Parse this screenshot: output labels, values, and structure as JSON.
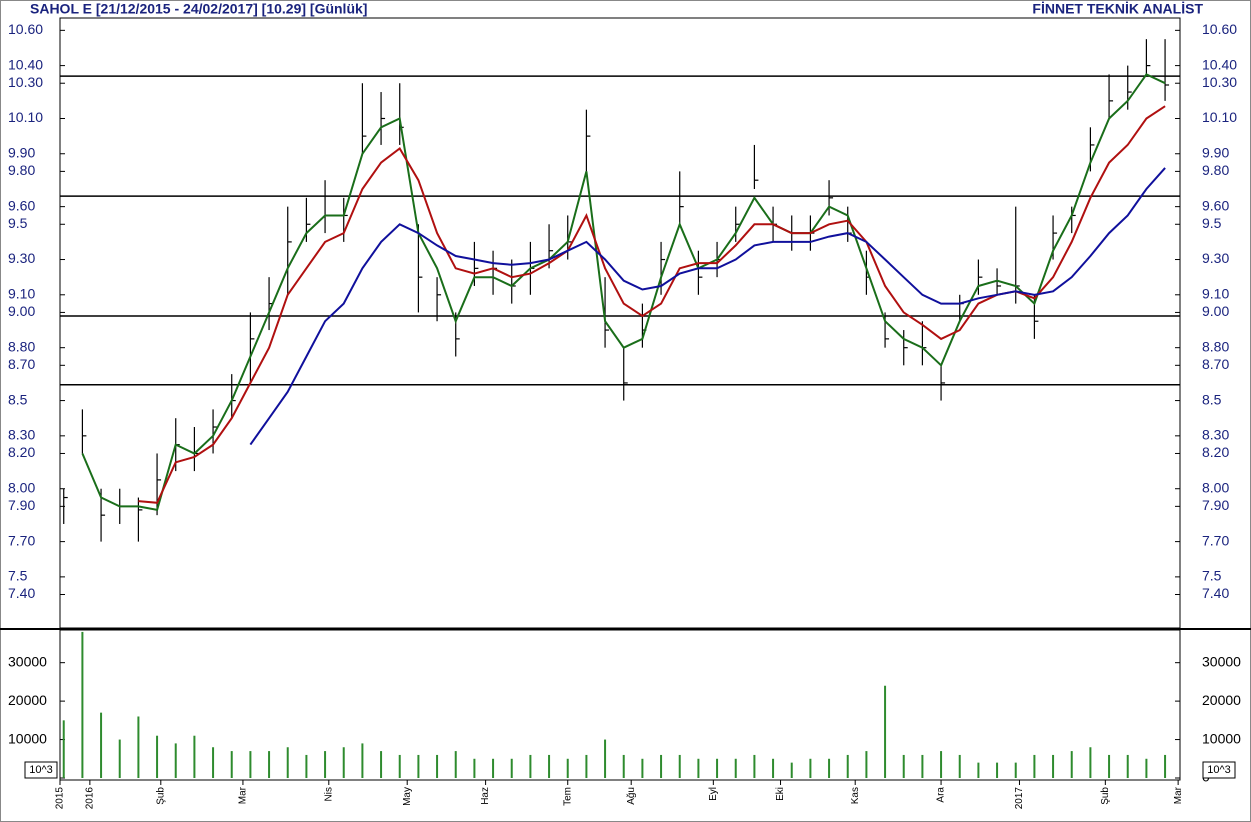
{
  "chart_data": [
    {
      "type": "ohlc",
      "title": "SAHOL E  [21/12/2015 - 24/02/2017]  [10.29]  [Günlük]",
      "source": "FİNNET TEKNİK ANALİST",
      "color": "#000000",
      "x": [
        1,
        6,
        11,
        16,
        21,
        26,
        31,
        36,
        41,
        46,
        51,
        56,
        61,
        66,
        71,
        76,
        81,
        86,
        91,
        96,
        101,
        106,
        111,
        116,
        121,
        126,
        131,
        136,
        141,
        146,
        151,
        156,
        161,
        166,
        171,
        176,
        181,
        186,
        191,
        196,
        201,
        206,
        211,
        216,
        221,
        226,
        231,
        236,
        241,
        246,
        251,
        256,
        261,
        266,
        271,
        276,
        281,
        286,
        291,
        296
      ],
      "high": [
        8.0,
        8.45,
        8.0,
        8.0,
        7.95,
        8.2,
        8.4,
        8.35,
        8.45,
        8.65,
        9.0,
        9.2,
        9.6,
        9.65,
        9.75,
        9.65,
        10.3,
        10.25,
        10.3,
        9.5,
        9.2,
        9.0,
        9.4,
        9.35,
        9.3,
        9.4,
        9.5,
        9.55,
        10.15,
        9.2,
        8.8,
        9.05,
        9.4,
        9.8,
        9.35,
        9.4,
        9.6,
        9.95,
        9.6,
        9.55,
        9.55,
        9.75,
        9.6,
        9.35,
        9.0,
        8.9,
        8.95,
        8.7,
        9.1,
        9.3,
        9.25,
        9.6,
        9.1,
        9.55,
        9.6,
        10.05,
        10.35,
        10.4,
        10.55,
        10.55
      ],
      "low": [
        7.8,
        8.2,
        7.7,
        7.8,
        7.7,
        7.85,
        8.1,
        8.1,
        8.2,
        8.4,
        8.6,
        8.9,
        9.1,
        9.4,
        9.45,
        9.4,
        9.9,
        9.95,
        9.95,
        9.0,
        8.95,
        8.75,
        9.15,
        9.1,
        9.05,
        9.1,
        9.25,
        9.3,
        9.8,
        8.8,
        8.5,
        8.8,
        9.1,
        9.5,
        9.1,
        9.2,
        9.4,
        9.7,
        9.4,
        9.35,
        9.35,
        9.55,
        9.4,
        9.1,
        8.8,
        8.7,
        8.7,
        8.5,
        8.95,
        9.1,
        9.1,
        9.05,
        8.85,
        9.3,
        9.45,
        9.8,
        10.1,
        10.15,
        10.35,
        10.2
      ],
      "close": [
        7.95,
        8.3,
        7.85,
        7.9,
        7.88,
        8.05,
        8.25,
        8.2,
        8.35,
        8.5,
        8.85,
        9.05,
        9.4,
        9.5,
        9.55,
        9.55,
        10.0,
        10.1,
        10.05,
        9.2,
        9.1,
        8.85,
        9.25,
        9.25,
        9.15,
        9.25,
        9.35,
        9.4,
        10.0,
        8.9,
        8.6,
        8.9,
        9.3,
        9.6,
        9.2,
        9.3,
        9.5,
        9.75,
        9.5,
        9.45,
        9.45,
        9.65,
        9.45,
        9.2,
        8.85,
        8.8,
        8.8,
        8.6,
        9.05,
        9.2,
        9.15,
        9.15,
        8.95,
        9.45,
        9.55,
        9.95,
        10.2,
        10.25,
        10.4,
        10.29
      ],
      "series": [
        {
          "color": "#1a6e1a",
          "values": [
            null,
            8.2,
            7.95,
            7.9,
            7.9,
            7.88,
            8.25,
            8.2,
            8.3,
            8.5,
            8.75,
            9.0,
            9.25,
            9.45,
            9.55,
            9.55,
            9.9,
            10.05,
            10.1,
            9.45,
            9.25,
            8.95,
            9.2,
            9.2,
            9.15,
            9.25,
            9.3,
            9.4,
            9.8,
            8.95,
            8.8,
            8.85,
            9.2,
            9.5,
            9.25,
            9.3,
            9.45,
            9.65,
            9.5,
            9.45,
            9.45,
            9.6,
            9.55,
            9.25,
            8.95,
            8.85,
            8.8,
            8.7,
            8.95,
            9.15,
            9.18,
            9.15,
            9.05,
            9.35,
            9.55,
            9.85,
            10.1,
            10.2,
            10.35,
            10.3
          ]
        },
        {
          "color": "#b01010",
          "values": [
            null,
            null,
            null,
            null,
            7.93,
            7.92,
            8.15,
            8.18,
            8.25,
            8.4,
            8.6,
            8.8,
            9.1,
            9.25,
            9.4,
            9.45,
            9.7,
            9.85,
            9.93,
            9.75,
            9.45,
            9.25,
            9.22,
            9.25,
            9.2,
            9.22,
            9.28,
            9.35,
            9.55,
            9.25,
            9.05,
            8.98,
            9.05,
            9.25,
            9.28,
            9.28,
            9.38,
            9.5,
            9.5,
            9.45,
            9.45,
            9.5,
            9.52,
            9.4,
            9.15,
            9.0,
            8.93,
            8.85,
            8.9,
            9.05,
            9.1,
            9.12,
            9.08,
            9.2,
            9.4,
            9.65,
            9.85,
            9.95,
            10.1,
            10.17
          ]
        },
        {
          "color": "#10109c",
          "values": [
            null,
            null,
            null,
            null,
            null,
            null,
            null,
            null,
            null,
            null,
            8.25,
            8.4,
            8.55,
            8.75,
            8.95,
            9.05,
            9.25,
            9.4,
            9.5,
            9.45,
            9.38,
            9.32,
            9.3,
            9.28,
            9.27,
            9.28,
            9.3,
            9.35,
            9.4,
            9.3,
            9.18,
            9.13,
            9.15,
            9.22,
            9.25,
            9.25,
            9.3,
            9.38,
            9.4,
            9.4,
            9.4,
            9.43,
            9.45,
            9.4,
            9.3,
            9.2,
            9.1,
            9.05,
            9.05,
            9.08,
            9.1,
            9.12,
            9.1,
            9.12,
            9.2,
            9.32,
            9.45,
            9.55,
            9.7,
            9.82
          ]
        }
      ],
      "hlines": [
        10.34,
        9.66,
        8.98,
        8.59
      ],
      "xlim": [
        0,
        300
      ],
      "xticks": [
        {
          "value": 0,
          "label": "2015"
        },
        {
          "value": 8,
          "label": "2016"
        },
        {
          "value": 27,
          "label": "Şub"
        },
        {
          "value": 49,
          "label": "Mar"
        },
        {
          "value": 72,
          "label": "Nis"
        },
        {
          "value": 93,
          "label": "May"
        },
        {
          "value": 114,
          "label": "Haz"
        },
        {
          "value": 136,
          "label": "Tem"
        },
        {
          "value": 153,
          "label": "Ağu"
        },
        {
          "value": 175,
          "label": "Eyl"
        },
        {
          "value": 193,
          "label": "Eki"
        },
        {
          "value": 213,
          "label": "Kas"
        },
        {
          "value": 236,
          "label": "Ara"
        },
        {
          "value": 257,
          "label": "2017"
        },
        {
          "value": 280,
          "label": "Şub"
        },
        {
          "value": 299.5,
          "label": "Mar"
        }
      ],
      "ylim": [
        7.21,
        10.67
      ],
      "yticks": [
        {
          "value": 10.6,
          "label": "10.60"
        },
        {
          "value": 10.4,
          "label": "10.40"
        },
        {
          "value": 10.3,
          "label": "10.30"
        },
        {
          "value": 10.1,
          "label": "10.10"
        },
        {
          "value": 9.9,
          "label": "9.90"
        },
        {
          "value": 9.8,
          "label": "9.80"
        },
        {
          "value": 9.6,
          "label": "9.60"
        },
        9.5,
        {
          "value": 9.3,
          "label": "9.30"
        },
        {
          "value": 9.1,
          "label": "9.10"
        },
        {
          "value": 9,
          "label": "9.00"
        },
        {
          "value": 8.8,
          "label": "8.80"
        },
        {
          "value": 8.7,
          "label": "8.70"
        },
        8.5,
        {
          "value": 8.3,
          "label": "8.30"
        },
        {
          "value": 8.2,
          "label": "8.20"
        },
        {
          "value": 8,
          "label": "8.00"
        },
        {
          "value": 7.9,
          "label": "7.90"
        },
        {
          "value": 7.7,
          "label": "7.70"
        },
        7.5,
        {
          "value": 7.4,
          "label": "7.40"
        }
      ]
    },
    {
      "type": "bar",
      "color": "#2e8b2e",
      "unit_label": "10^3",
      "x": [
        1,
        6,
        11,
        16,
        21,
        26,
        31,
        36,
        41,
        46,
        51,
        56,
        61,
        66,
        71,
        76,
        81,
        86,
        91,
        96,
        101,
        106,
        111,
        116,
        121,
        126,
        131,
        136,
        141,
        146,
        151,
        156,
        161,
        166,
        171,
        176,
        181,
        186,
        191,
        196,
        201,
        206,
        211,
        216,
        221,
        226,
        231,
        236,
        241,
        246,
        251,
        256,
        261,
        266,
        271,
        276,
        281,
        286,
        291,
        296
      ],
      "values": [
        15000,
        38000,
        17000,
        10000,
        16000,
        11000,
        9000,
        11000,
        8000,
        7000,
        7000,
        7000,
        8000,
        6000,
        7000,
        8000,
        9000,
        7000,
        6000,
        6000,
        6000,
        7000,
        5000,
        5000,
        5000,
        6000,
        6000,
        5000,
        6000,
        10000,
        6000,
        5000,
        6000,
        6000,
        5000,
        5000,
        5000,
        6000,
        5000,
        4000,
        5000,
        5000,
        6000,
        7000,
        24000,
        6000,
        6000,
        7000,
        6000,
        4000,
        4000,
        4000,
        6000,
        6000,
        7000,
        8000,
        6000,
        6000,
        5000,
        6000
      ],
      "xlim": [
        0,
        300
      ],
      "ylim": [
        0,
        38500
      ],
      "yticks": [
        0,
        10000,
        20000,
        30000
      ]
    }
  ]
}
